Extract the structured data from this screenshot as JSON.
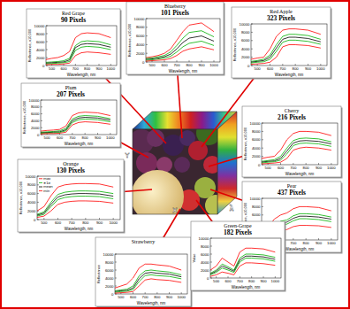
{
  "chart_data": [
    {
      "type": "line",
      "title": "Red Grape",
      "subtitle": "90 Pixels",
      "x_label": "Wavelength, nm",
      "y_label": "Reflectance, x10,000",
      "x": [
        450,
        500,
        550,
        600,
        650,
        700,
        750,
        800,
        900,
        1000
      ],
      "xlim": [
        450,
        1050
      ],
      "ylim": [
        0,
        10000
      ],
      "xticks": [
        500,
        600,
        700,
        800,
        900,
        1000
      ],
      "yticks": [
        0,
        2000,
        4000,
        6000,
        8000,
        10000
      ],
      "series": [
        {
          "color": "#ff0000",
          "values": [
            1500,
            1800,
            2000,
            2500,
            3500,
            7000,
            8000,
            8200,
            8000,
            7000
          ]
        },
        {
          "color": "#00b000",
          "values": [
            800,
            900,
            1000,
            1200,
            1800,
            5000,
            6000,
            6200,
            6000,
            5200
          ]
        },
        {
          "color": "#000000",
          "values": [
            600,
            700,
            800,
            900,
            1400,
            4500,
            5300,
            5500,
            5300,
            4600
          ]
        },
        {
          "color": "#00b000",
          "values": [
            400,
            500,
            600,
            700,
            1000,
            3800,
            4600,
            4800,
            4600,
            4000
          ]
        },
        {
          "color": "#ff0000",
          "values": [
            200,
            300,
            300,
            400,
            600,
            2500,
            3200,
            3400,
            3200,
            2800
          ]
        }
      ]
    },
    {
      "type": "line",
      "title": "Blueberry",
      "subtitle": "101 Pixels",
      "x_label": "Wavelength, nm",
      "y_label": "Reflectance, x10,000",
      "x": [
        450,
        500,
        550,
        600,
        650,
        700,
        750,
        800,
        900,
        1000
      ],
      "xlim": [
        450,
        1050
      ],
      "ylim": [
        0,
        10000
      ],
      "xticks": [
        500,
        600,
        700,
        800,
        900,
        1000
      ],
      "yticks": [
        0,
        2000,
        4000,
        6000,
        8000,
        10000
      ],
      "series": [
        {
          "color": "#ff0000",
          "values": [
            1000,
            1200,
            1500,
            2000,
            3000,
            5000,
            7000,
            8500,
            9000,
            7000
          ]
        },
        {
          "color": "#00b000",
          "values": [
            800,
            900,
            1200,
            1500,
            2300,
            3800,
            5500,
            6800,
            7200,
            5800
          ]
        },
        {
          "color": "#000000",
          "values": [
            600,
            700,
            900,
            1200,
            1800,
            3000,
            4500,
            5500,
            6000,
            4800
          ]
        },
        {
          "color": "#00b000",
          "values": [
            400,
            500,
            700,
            900,
            1300,
            2300,
            3500,
            4300,
            4800,
            3800
          ]
        },
        {
          "color": "#ff0000",
          "values": [
            200,
            300,
            400,
            500,
            800,
            1500,
            2500,
            3000,
            3500,
            2800
          ]
        }
      ]
    },
    {
      "type": "line",
      "title": "Red Apple",
      "subtitle": "323 Pixels",
      "x_label": "Wavelength, nm",
      "y_label": "Reflectance, x10,000",
      "x": [
        450,
        500,
        550,
        600,
        650,
        700,
        750,
        800,
        900,
        1000
      ],
      "xlim": [
        450,
        1050
      ],
      "ylim": [
        0,
        10000
      ],
      "xticks": [
        500,
        600,
        700,
        800,
        900,
        1000
      ],
      "yticks": [
        0,
        2000,
        4000,
        6000,
        8000,
        10000
      ],
      "series": [
        {
          "color": "#ff0000",
          "values": [
            1500,
            1800,
            2000,
            4000,
            7000,
            8500,
            8800,
            8800,
            8500,
            7500
          ]
        },
        {
          "color": "#00b000",
          "values": [
            1000,
            1200,
            1500,
            2500,
            5000,
            7000,
            7500,
            7500,
            7200,
            6300
          ]
        },
        {
          "color": "#000000",
          "values": [
            800,
            1000,
            1200,
            2000,
            4200,
            6300,
            6800,
            6800,
            6500,
            5700
          ]
        },
        {
          "color": "#00b000",
          "values": [
            600,
            800,
            900,
            1500,
            3400,
            5600,
            6100,
            6100,
            5800,
            5100
          ]
        },
        {
          "color": "#ff0000",
          "values": [
            300,
            400,
            500,
            800,
            2000,
            4500,
            5000,
            5000,
            4800,
            4200
          ]
        }
      ]
    },
    {
      "type": "line",
      "title": "Plum",
      "subtitle": "207 Pixels",
      "x_label": "Wavelength, nm",
      "y_label": "Reflectance, x10,000",
      "x": [
        450,
        500,
        550,
        600,
        650,
        700,
        750,
        800,
        900,
        1000
      ],
      "xlim": [
        450,
        1050
      ],
      "ylim": [
        0,
        10000
      ],
      "xticks": [
        500,
        600,
        700,
        800,
        900,
        1000
      ],
      "yticks": [
        0,
        2000,
        4000,
        6000,
        8000,
        10000
      ],
      "series": [
        {
          "color": "#ff0000",
          "values": [
            1000,
            1200,
            1300,
            1500,
            2500,
            5500,
            6300,
            6500,
            6300,
            5500
          ]
        },
        {
          "color": "#00b000",
          "values": [
            700,
            800,
            900,
            1100,
            1800,
            4500,
            5300,
            5500,
            5300,
            4600
          ]
        },
        {
          "color": "#000000",
          "values": [
            500,
            600,
            700,
            800,
            1400,
            4000,
            4800,
            5000,
            4800,
            4200
          ]
        },
        {
          "color": "#00b000",
          "values": [
            400,
            500,
            500,
            600,
            1100,
            3500,
            4300,
            4500,
            4300,
            3700
          ]
        },
        {
          "color": "#ff0000",
          "values": [
            200,
            300,
            300,
            400,
            700,
            2800,
            3500,
            3700,
            3500,
            3000
          ]
        }
      ]
    },
    {
      "type": "line",
      "title": "Cherry",
      "subtitle": "216 Pixels",
      "x_label": "Wavelength, nm",
      "y_label": "Reflectance, x10,000",
      "x": [
        450,
        500,
        550,
        600,
        650,
        700,
        750,
        800,
        900,
        1000
      ],
      "xlim": [
        450,
        1050
      ],
      "ylim": [
        0,
        10000
      ],
      "xticks": [
        500,
        600,
        700,
        800,
        900,
        1000
      ],
      "yticks": [
        0,
        2000,
        4000,
        6000,
        8000,
        10000
      ],
      "series": [
        {
          "color": "#ff0000",
          "values": [
            1500,
            1800,
            2000,
            3500,
            6000,
            7500,
            8000,
            8000,
            7800,
            7000
          ]
        },
        {
          "color": "#00b000",
          "values": [
            800,
            1000,
            1200,
            2000,
            4000,
            5800,
            6300,
            6400,
            6200,
            5500
          ]
        },
        {
          "color": "#000000",
          "values": [
            600,
            800,
            900,
            1500,
            3300,
            5200,
            5700,
            5800,
            5600,
            5000
          ]
        },
        {
          "color": "#00b000",
          "values": [
            400,
            600,
            700,
            1100,
            2600,
            4600,
            5100,
            5200,
            5000,
            4400
          ]
        },
        {
          "color": "#ff0000",
          "values": [
            200,
            300,
            400,
            600,
            1500,
            3500,
            4000,
            4200,
            4000,
            3500
          ]
        }
      ]
    },
    {
      "type": "line",
      "title": "Orange",
      "subtitle": "130 Pixels",
      "x_label": "Wavelength, nm",
      "y_label": "Reflectance, x10,000",
      "legend": "upper left",
      "x": [
        450,
        500,
        550,
        600,
        650,
        700,
        750,
        800,
        900,
        1000
      ],
      "xlim": [
        450,
        1050
      ],
      "ylim": [
        0,
        10000
      ],
      "xticks": [
        500,
        600,
        700,
        800,
        900,
        1000
      ],
      "yticks": [
        0,
        2000,
        4000,
        6000,
        8000,
        10000
      ],
      "series": [
        {
          "name": "max",
          "color": "#ff0000",
          "values": [
            2000,
            3000,
            5500,
            7500,
            8000,
            8200,
            8300,
            8300,
            8200,
            7500
          ]
        },
        {
          "name": "±1σ",
          "color": "#00b000",
          "values": [
            1200,
            1800,
            4000,
            5800,
            6300,
            6500,
            6600,
            6600,
            6500,
            6000
          ]
        },
        {
          "name": "mean",
          "color": "#000000",
          "values": [
            1000,
            1500,
            3500,
            5200,
            5700,
            5900,
            6000,
            6000,
            5900,
            5400
          ]
        },
        {
          "color": "#00b000",
          "values": [
            800,
            1200,
            3000,
            4600,
            5100,
            5300,
            5400,
            5400,
            5300,
            4800
          ]
        },
        {
          "name": "min",
          "color": "#ff0000",
          "values": [
            500,
            800,
            2000,
            3500,
            4000,
            4200,
            4300,
            4300,
            4200,
            3800
          ]
        }
      ]
    },
    {
      "type": "line",
      "title": "Pear",
      "subtitle": "437 Pixels",
      "x_label": "Wavelength, nm",
      "y_label": "Reflectance, x10,000",
      "x": [
        450,
        500,
        550,
        600,
        650,
        700,
        750,
        800,
        900,
        1000
      ],
      "xlim": [
        450,
        1050
      ],
      "ylim": [
        0,
        10000
      ],
      "xticks": [
        500,
        600,
        700,
        800,
        900,
        1000
      ],
      "yticks": [
        0,
        2000,
        4000,
        6000,
        8000,
        10000
      ],
      "series": [
        {
          "color": "#ff0000",
          "values": [
            2000,
            3000,
            5000,
            6000,
            6500,
            7500,
            8000,
            8000,
            7800,
            7000
          ]
        },
        {
          "color": "#00b000",
          "values": [
            1200,
            1800,
            3500,
            4500,
            4800,
            5800,
            6300,
            6300,
            6100,
            5500
          ]
        },
        {
          "color": "#000000",
          "values": [
            1000,
            1500,
            3000,
            4000,
            4300,
            5200,
            5700,
            5700,
            5500,
            5000
          ]
        },
        {
          "color": "#00b000",
          "values": [
            800,
            1200,
            2500,
            3500,
            3800,
            4600,
            5100,
            5100,
            4900,
            4400
          ]
        },
        {
          "color": "#ff0000",
          "values": [
            400,
            600,
            1500,
            2200,
            2500,
            3200,
            3500,
            3500,
            3400,
            3000
          ]
        }
      ]
    },
    {
      "type": "line",
      "title": "Strawberry",
      "x_label": "Wavelength, nm",
      "y_label": "Reflectance",
      "x": [
        450,
        500,
        550,
        600,
        650,
        700,
        750,
        800,
        900,
        1000
      ],
      "xlim": [
        450,
        1050
      ],
      "ylim": [
        0,
        10000
      ],
      "xticks": [
        500,
        600,
        700,
        800,
        900,
        1000
      ],
      "yticks": [
        0,
        2000,
        4000,
        6000,
        8000,
        10000
      ],
      "series": [
        {
          "color": "#ff0000",
          "values": [
            1500,
            2000,
            2500,
            4000,
            6500,
            7500,
            7500,
            7300,
            7000,
            6000
          ]
        },
        {
          "color": "#00b000",
          "values": [
            800,
            1000,
            1200,
            2000,
            4500,
            5800,
            6000,
            5800,
            5500,
            4800
          ]
        },
        {
          "color": "#000000",
          "values": [
            600,
            800,
            900,
            1500,
            3800,
            5200,
            5400,
            5200,
            5000,
            4300
          ]
        },
        {
          "color": "#00b000",
          "values": [
            400,
            600,
            700,
            1100,
            3100,
            4600,
            4800,
            4600,
            4400,
            3800
          ]
        },
        {
          "color": "#ff0000",
          "values": [
            200,
            300,
            400,
            600,
            2000,
            3500,
            3800,
            3600,
            3400,
            2900
          ]
        }
      ]
    },
    {
      "type": "line",
      "title": "Green-Grape",
      "subtitle": "182 Pixels",
      "x_label": "Wavelength, nm",
      "y_label": "Value",
      "x": [
        450,
        500,
        550,
        600,
        650,
        700,
        750,
        800,
        900,
        1000
      ],
      "xlim": [
        450,
        1050
      ],
      "ylim": [
        0,
        10000
      ],
      "xticks": [
        500,
        600,
        700,
        800,
        900,
        1000
      ],
      "yticks": [
        0,
        2000,
        4000,
        6000,
        8000,
        10000
      ],
      "series": [
        {
          "color": "#ff0000",
          "values": [
            2000,
            3000,
            5000,
            4000,
            3000,
            6500,
            7500,
            7500,
            7300,
            6500
          ]
        },
        {
          "color": "#00b000",
          "values": [
            1200,
            2000,
            3500,
            2800,
            2000,
            5000,
            6000,
            6000,
            5800,
            5200
          ]
        },
        {
          "color": "#000000",
          "values": [
            1000,
            1700,
            3000,
            2400,
            1700,
            4500,
            5500,
            5500,
            5300,
            4700
          ]
        },
        {
          "color": "#00b000",
          "values": [
            800,
            1400,
            2500,
            2000,
            1400,
            4000,
            5000,
            5000,
            4800,
            4200
          ]
        },
        {
          "color": "#ff0000",
          "values": [
            400,
            800,
            1500,
            1200,
            800,
            3000,
            3800,
            3800,
            3600,
            3200
          ]
        }
      ]
    }
  ],
  "cube": {
    "x_label": "X",
    "y_label": "Y",
    "lambda_label": "λ"
  }
}
